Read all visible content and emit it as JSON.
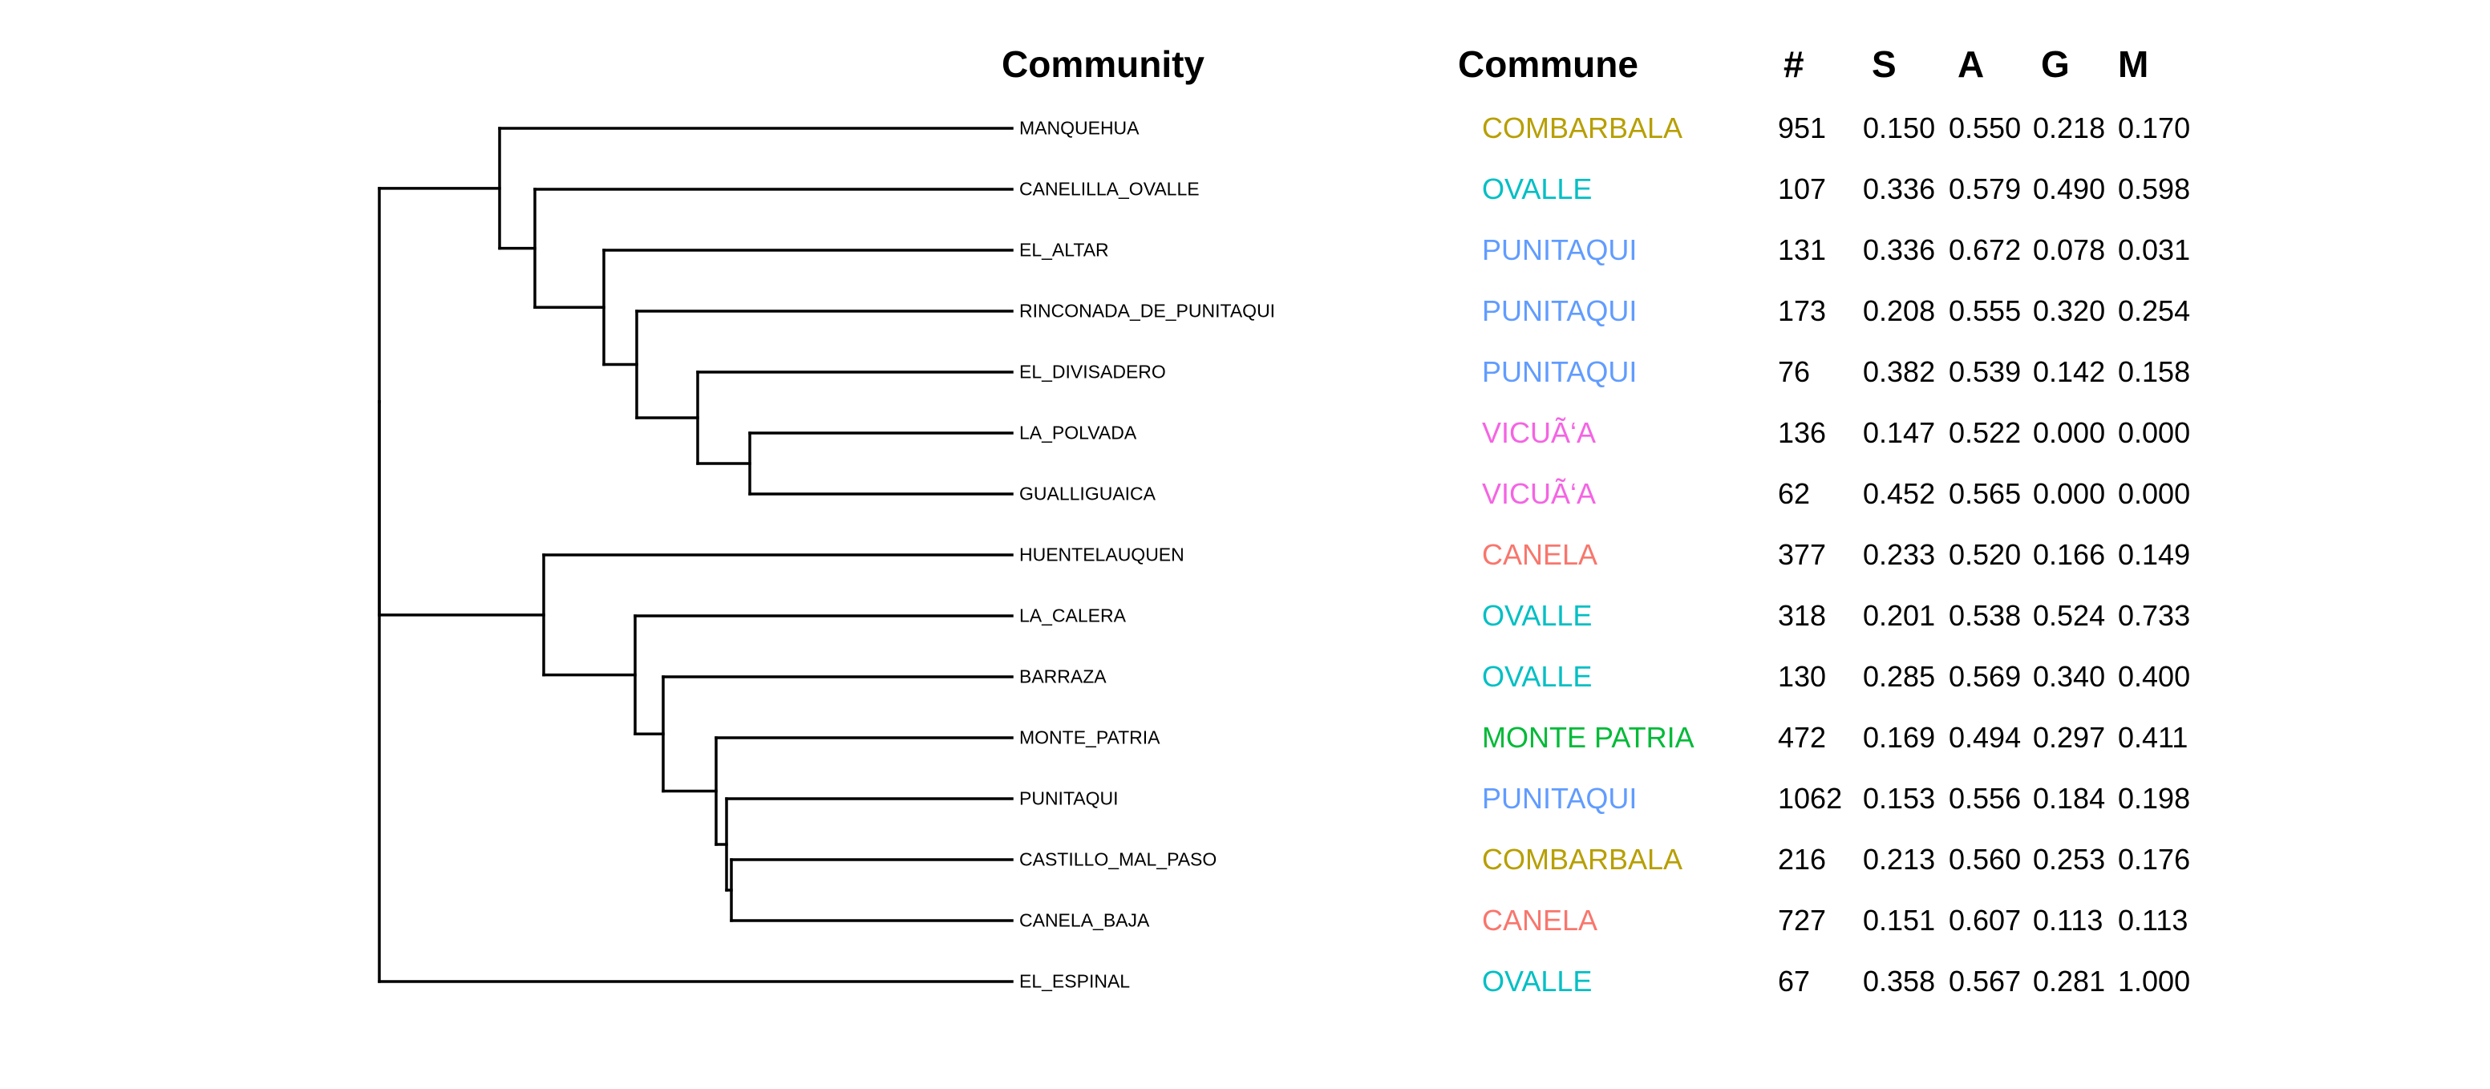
{
  "headers": {
    "community": "Community",
    "commune": "Commune",
    "count": "#",
    "s": "S",
    "a": "A",
    "g": "G",
    "m": "M"
  },
  "commune_colors": {
    "COMBARBALA": "#B79F00",
    "OVALLE": "#00BFC4",
    "PUNITAQUI": "#619CFF",
    "VICUÃ‘A": "#F564E3",
    "CANELA": "#F8766D",
    "MONTE PATRIA": "#00BA38"
  },
  "line_color": "#000000",
  "rows": [
    {
      "community": "MANQUEHUA",
      "commune": "COMBARBALA",
      "count": "951",
      "s": "0.150",
      "a": "0.550",
      "g": "0.218",
      "m": "0.170"
    },
    {
      "community": "CANELILLA_OVALLE",
      "commune": "OVALLE",
      "count": "107",
      "s": "0.336",
      "a": "0.579",
      "g": "0.490",
      "m": "0.598"
    },
    {
      "community": "EL_ALTAR",
      "commune": "PUNITAQUI",
      "count": "131",
      "s": "0.336",
      "a": "0.672",
      "g": "0.078",
      "m": "0.031"
    },
    {
      "community": "RINCONADA_DE_PUNITAQUI",
      "commune": "PUNITAQUI",
      "count": "173",
      "s": "0.208",
      "a": "0.555",
      "g": "0.320",
      "m": "0.254"
    },
    {
      "community": "EL_DIVISADERO",
      "commune": "PUNITAQUI",
      "count": "76",
      "s": "0.382",
      "a": "0.539",
      "g": "0.142",
      "m": "0.158"
    },
    {
      "community": "LA_POLVADA",
      "commune": "VICUÃ‘A",
      "count": "136",
      "s": "0.147",
      "a": "0.522",
      "g": "0.000",
      "m": "0.000"
    },
    {
      "community": "GUALLIGUAICA",
      "commune": "VICUÃ‘A",
      "count": "62",
      "s": "0.452",
      "a": "0.565",
      "g": "0.000",
      "m": "0.000"
    },
    {
      "community": "HUENTELAUQUEN",
      "commune": "CANELA",
      "count": "377",
      "s": "0.233",
      "a": "0.520",
      "g": "0.166",
      "m": "0.149"
    },
    {
      "community": "LA_CALERA",
      "commune": "OVALLE",
      "count": "318",
      "s": "0.201",
      "a": "0.538",
      "g": "0.524",
      "m": "0.733"
    },
    {
      "community": "BARRAZA",
      "commune": "OVALLE",
      "count": "130",
      "s": "0.285",
      "a": "0.569",
      "g": "0.340",
      "m": "0.400"
    },
    {
      "community": "MONTE_PATRIA",
      "commune": "MONTE PATRIA",
      "count": "472",
      "s": "0.169",
      "a": "0.494",
      "g": "0.297",
      "m": "0.411"
    },
    {
      "community": "PUNITAQUI",
      "commune": "PUNITAQUI",
      "count": "1062",
      "s": "0.153",
      "a": "0.556",
      "g": "0.184",
      "m": "0.198"
    },
    {
      "community": "CASTILLO_MAL_PASO",
      "commune": "COMBARBALA",
      "count": "216",
      "s": "0.213",
      "a": "0.560",
      "g": "0.253",
      "m": "0.176"
    },
    {
      "community": "CANELA_BAJA",
      "commune": "CANELA",
      "count": "727",
      "s": "0.151",
      "a": "0.607",
      "g": "0.113",
      "m": "0.113"
    },
    {
      "community": "EL_ESPINAL",
      "commune": "OVALLE",
      "count": "67",
      "s": "0.358",
      "a": "0.567",
      "g": "0.281",
      "m": "1.000"
    }
  ]
}
